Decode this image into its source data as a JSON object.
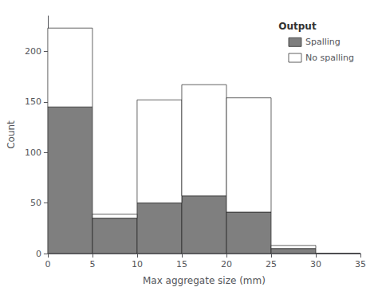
{
  "chart_data": {
    "type": "histogram",
    "bins": [
      0,
      5,
      10,
      15,
      20,
      25,
      30,
      35
    ],
    "series": [
      {
        "name": "Spalling",
        "color": "#7f7f7f",
        "values": [
          145,
          35,
          50,
          57,
          41,
          5,
          0
        ]
      },
      {
        "name": "No spalling",
        "color": "#ffffff",
        "values": [
          78,
          4,
          102,
          110,
          113,
          3,
          0
        ]
      }
    ],
    "stacked": true,
    "xlabel": "Max aggregate size (mm)",
    "ylabel": "Count",
    "legend_title": "Output",
    "legend": "upper right",
    "xlim": [
      0,
      35
    ],
    "ylim": [
      0,
      235
    ],
    "xticks": [
      0,
      5,
      10,
      15,
      20,
      25,
      30,
      35
    ],
    "yticks": [
      0,
      50,
      100,
      150,
      200
    ],
    "grid": false
  }
}
